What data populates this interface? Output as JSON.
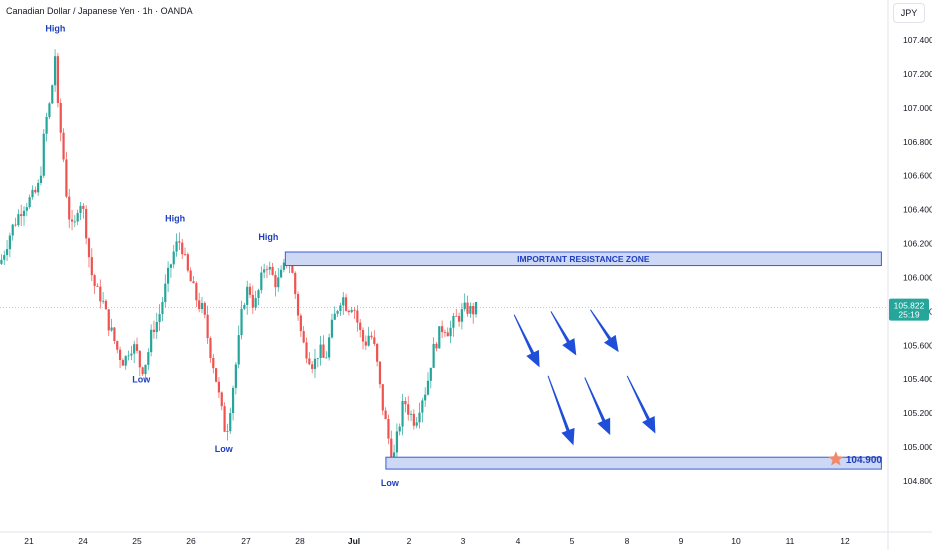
{
  "header": {
    "title": "Canadian Dollar / Japanese Yen · 1h · OANDA",
    "currency_button": "JPY"
  },
  "colors": {
    "up": "#26a69a",
    "down": "#ef5350",
    "zone_fill": "#cdd8f5",
    "zone_stroke": "#3a5bd9",
    "arrow": "#1f4ed8",
    "annotation": "#1f3fbf",
    "price_tag": "#26a69a",
    "star": "#f08a6c"
  },
  "chart_data": {
    "type": "candlestick",
    "symbol": "CADJPY",
    "timeframe": "1h",
    "y_axis": {
      "ylim": [
        104.72,
        107.53
      ],
      "ticks": [
        "107.400",
        "107.200",
        "107.000",
        "106.800",
        "106.600",
        "106.400",
        "106.200",
        "106.000",
        "105.800",
        "105.600",
        "105.400",
        "105.200",
        "105.000",
        "104.800"
      ]
    },
    "x_axis": {
      "ticks": [
        "21",
        "24",
        "25",
        "26",
        "27",
        "28",
        "Jul",
        "2",
        "3",
        "4",
        "5",
        "8",
        "9",
        "10",
        "11",
        "12"
      ]
    },
    "price_path": [
      [
        0,
        106.08
      ],
      [
        2,
        106.28
      ],
      [
        4,
        106.42
      ],
      [
        6,
        106.48
      ],
      [
        7,
        106.55
      ],
      [
        8,
        106.9
      ],
      [
        9,
        107.05
      ],
      [
        9.8,
        107.33
      ],
      [
        10.3,
        106.95
      ],
      [
        11,
        106.8
      ],
      [
        12,
        106.4
      ],
      [
        13,
        106.25
      ],
      [
        14,
        106.48
      ],
      [
        15,
        106.35
      ],
      [
        16,
        106.05
      ],
      [
        17,
        105.92
      ],
      [
        18,
        105.88
      ],
      [
        19,
        105.75
      ],
      [
        20,
        105.65
      ],
      [
        21,
        105.55
      ],
      [
        22,
        105.5
      ],
      [
        23,
        105.6
      ],
      [
        24,
        105.58
      ],
      [
        25,
        105.45
      ],
      [
        26,
        105.52
      ],
      [
        27,
        105.7
      ],
      [
        28,
        105.75
      ],
      [
        29,
        105.9
      ],
      [
        30,
        106.05
      ],
      [
        31,
        106.18
      ],
      [
        32,
        106.22
      ],
      [
        33,
        106.05
      ],
      [
        34,
        105.95
      ],
      [
        35,
        105.85
      ],
      [
        36,
        105.8
      ],
      [
        37,
        105.6
      ],
      [
        38,
        105.45
      ],
      [
        39,
        105.25
      ],
      [
        40,
        105.07
      ],
      [
        41,
        105.3
      ],
      [
        42,
        105.55
      ],
      [
        43,
        105.85
      ],
      [
        44,
        105.95
      ],
      [
        45,
        105.82
      ],
      [
        46,
        105.95
      ],
      [
        47,
        106.1
      ],
      [
        48,
        106.02
      ],
      [
        49,
        105.96
      ],
      [
        50,
        106.03
      ],
      [
        51,
        106.12
      ],
      [
        51.6,
        106.05
      ],
      [
        52.5,
        105.85
      ],
      [
        53.5,
        105.62
      ],
      [
        54.5,
        105.55
      ],
      [
        55.5,
        105.48
      ],
      [
        56.5,
        105.58
      ],
      [
        57.5,
        105.5
      ],
      [
        58.5,
        105.68
      ],
      [
        59.5,
        105.8
      ],
      [
        60.5,
        105.9
      ],
      [
        61.5,
        105.82
      ],
      [
        62.5,
        105.85
      ],
      [
        63.5,
        105.7
      ],
      [
        64.5,
        105.6
      ],
      [
        65.5,
        105.68
      ],
      [
        66.5,
        105.55
      ],
      [
        67.5,
        105.28
      ],
      [
        68.5,
        105.1
      ],
      [
        69.5,
        104.9
      ],
      [
        70.5,
        105.1
      ],
      [
        71.5,
        105.28
      ],
      [
        72.5,
        105.2
      ],
      [
        73.5,
        105.15
      ],
      [
        74.5,
        105.28
      ],
      [
        75.5,
        105.35
      ],
      [
        76.5,
        105.55
      ],
      [
        77.5,
        105.65
      ],
      [
        78.5,
        105.72
      ],
      [
        79.5,
        105.68
      ],
      [
        80.5,
        105.75
      ],
      [
        81.5,
        105.78
      ],
      [
        82.5,
        105.82
      ],
      [
        83.5,
        105.8
      ],
      [
        84.5,
        105.82
      ]
    ],
    "current_price": {
      "value": "105.822",
      "countdown": "25:19",
      "y": 105.822
    },
    "annotations": [
      {
        "text": "High",
        "x": 9.8,
        "y": 107.45
      },
      {
        "text": "Low",
        "x": 25,
        "y": 105.38
      },
      {
        "text": "High",
        "x": 31,
        "y": 106.33
      },
      {
        "text": "Low",
        "x": 39.6,
        "y": 104.97
      },
      {
        "text": "High",
        "x": 47.5,
        "y": 106.22
      },
      {
        "text": "Low",
        "x": 69,
        "y": 104.77
      }
    ],
    "zones": [
      {
        "label": "IMPORTANT RESISTANCE ZONE",
        "x0": 50.5,
        "x1": 156,
        "y_low": 106.07,
        "y_high": 106.15
      },
      {
        "label": "",
        "x0": 68.3,
        "x1": 156,
        "y_low": 104.87,
        "y_high": 104.94
      }
    ],
    "arrows": [
      {
        "x0": 91,
        "y0": 105.78,
        "x1": 95.5,
        "y1": 105.47
      },
      {
        "x0": 97.5,
        "y0": 105.8,
        "x1": 102,
        "y1": 105.54
      },
      {
        "x0": 104.5,
        "y0": 105.81,
        "x1": 109.5,
        "y1": 105.56
      },
      {
        "x0": 97,
        "y0": 105.42,
        "x1": 101.5,
        "y1": 105.01
      },
      {
        "x0": 103.5,
        "y0": 105.41,
        "x1": 108,
        "y1": 105.07
      },
      {
        "x0": 111,
        "y0": 105.42,
        "x1": 116,
        "y1": 105.08
      }
    ],
    "target": {
      "label": "104.900",
      "x": 149,
      "y": 104.935
    }
  }
}
